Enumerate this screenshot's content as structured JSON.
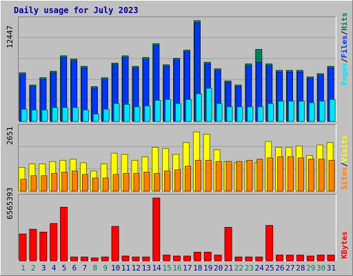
{
  "chart_data": [
    {
      "type": "bar",
      "title": "Daily usage for July 2023",
      "panel": "hits-files-pages",
      "ymax_label": "12447",
      "ylim": [
        0,
        12447
      ],
      "categories": [
        "1",
        "2",
        "3",
        "4",
        "5",
        "6",
        "7",
        "8",
        "9",
        "10",
        "11",
        "12",
        "13",
        "14",
        "15",
        "16",
        "17",
        "18",
        "19",
        "20",
        "21",
        "22",
        "23",
        "24",
        "25",
        "26",
        "27",
        "28",
        "29",
        "30",
        "31"
      ],
      "weekend_days": [
        "1",
        "2",
        "8",
        "9",
        "15",
        "16",
        "22",
        "23",
        "29",
        "30"
      ],
      "legend": [
        "Pages",
        "Files",
        "Hits"
      ],
      "series": [
        {
          "name": "Hits",
          "color": "#00805c",
          "values": [
            6000,
            4500,
            5400,
            6200,
            8100,
            7700,
            6800,
            4300,
            5400,
            7200,
            8100,
            6800,
            7900,
            9600,
            7000,
            7800,
            8800,
            12447,
            7300,
            6500,
            5000,
            4500,
            7100,
            8900,
            7100,
            6300,
            6300,
            6300,
            5500,
            5900,
            6800
          ]
        },
        {
          "name": "Files",
          "color": "#0036f7",
          "values": [
            5800,
            4300,
            5200,
            6000,
            7900,
            7500,
            6600,
            4100,
            5200,
            7000,
            7900,
            6600,
            7700,
            9400,
            6800,
            7600,
            8600,
            12200,
            7100,
            6300,
            4800,
            4300,
            6900,
            7300,
            6900,
            6100,
            6100,
            6100,
            5300,
            5700,
            6600
          ]
        },
        {
          "name": "Pages",
          "color": "#00e4ff",
          "values": [
            1500,
            1400,
            1400,
            1700,
            1700,
            1700,
            1400,
            900,
            1500,
            2200,
            2100,
            1800,
            1900,
            2600,
            2700,
            2200,
            2700,
            3400,
            4100,
            2200,
            1800,
            1800,
            1800,
            1800,
            2200,
            2500,
            2500,
            2500,
            2300,
            2500,
            2700
          ]
        }
      ]
    },
    {
      "type": "bar",
      "panel": "visits-sites",
      "ymax_label": "2651",
      "ylim": [
        0,
        2651
      ],
      "legend": [
        "Sites",
        "Visits"
      ],
      "series": [
        {
          "name": "Visits",
          "color": "#ffff00",
          "values": [
            1000,
            1150,
            1150,
            1250,
            1300,
            1350,
            1200,
            850,
            1150,
            1600,
            1550,
            1300,
            1450,
            1850,
            1800,
            1550,
            2050,
            2500,
            2400,
            1750,
            1250,
            1200,
            1250,
            1200,
            2100,
            1850,
            1850,
            1900,
            1500,
            1950,
            2050
          ]
        },
        {
          "name": "Sites",
          "color": "#ff8000",
          "values": [
            500,
            650,
            650,
            750,
            800,
            850,
            700,
            550,
            550,
            700,
            750,
            750,
            800,
            750,
            850,
            900,
            1050,
            1300,
            1300,
            1250,
            1250,
            1250,
            1300,
            1350,
            1400,
            1450,
            1450,
            1400,
            1350,
            1350,
            1300
          ]
        }
      ]
    },
    {
      "type": "bar",
      "panel": "kbytes",
      "ymax_label": "6565393",
      "ylim": [
        0,
        6565393
      ],
      "legend": [
        "KBytes"
      ],
      "series": [
        {
          "name": "KBytes",
          "color": "#ff0000",
          "values": [
            2800000,
            3300000,
            3000000,
            3900000,
            5600000,
            400000,
            400000,
            300000,
            400000,
            3600000,
            500000,
            400000,
            400000,
            6565393,
            600000,
            500000,
            500000,
            900000,
            900000,
            600000,
            3500000,
            400000,
            400000,
            400000,
            3700000,
            600000,
            600000,
            600000,
            500000,
            600000,
            600000
          ]
        }
      ]
    }
  ],
  "legend_separator": "/",
  "colors": {
    "background": "#c0c0c0",
    "plot_bg": "#c0c0c0",
    "title": "#0000a0",
    "weekday_label": "#0000a0",
    "weekend_label": "#00805c",
    "pages": "#00e4ff",
    "files": "#0036f7",
    "hits": "#00805c",
    "sites": "#ff8000",
    "visits": "#ffff00",
    "kbytes": "#ff0000"
  }
}
